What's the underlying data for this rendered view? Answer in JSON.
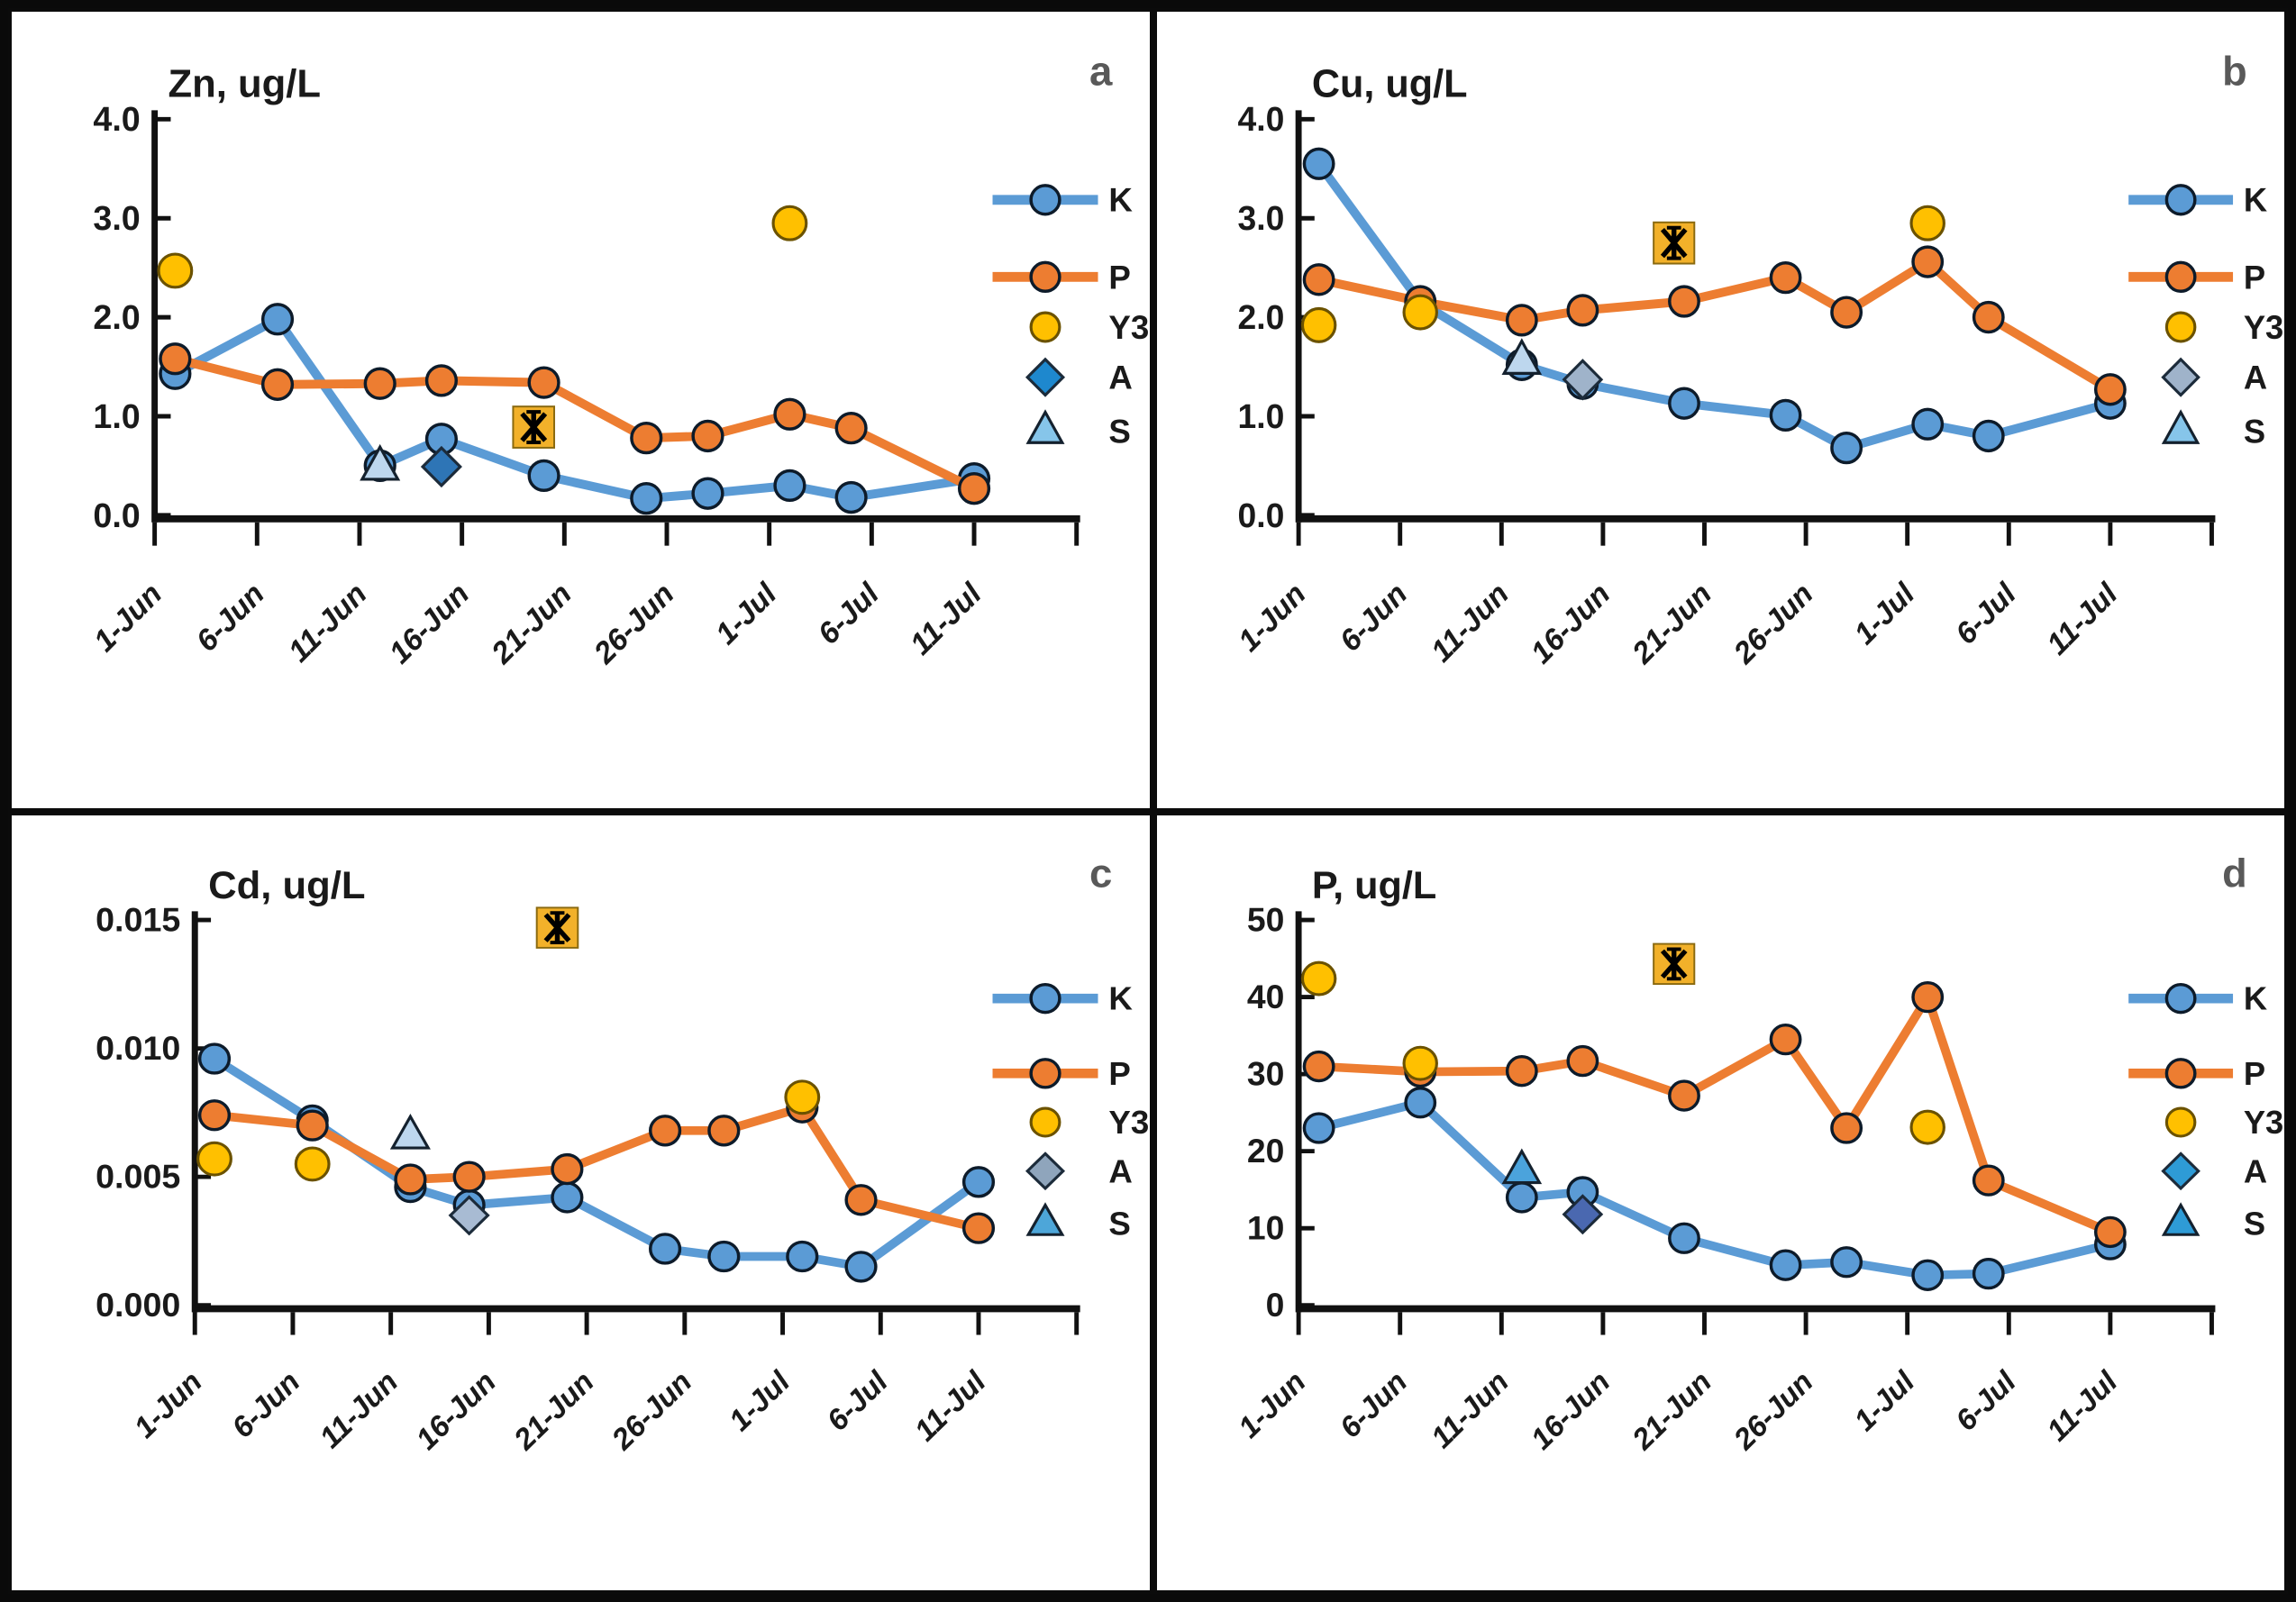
{
  "figure": {
    "background": "#ffffff",
    "border_color": "#0a0a0a"
  },
  "colors": {
    "k_series": "#5B9BD5",
    "p_series": "#ED7D31",
    "y3_fill": "#FFC000",
    "y3_stroke": "#6b5200",
    "marker_stroke": "#0d1b2a",
    "axis_color": "#111111",
    "text_color": "#1a1a1a",
    "panel_letter_color": "#595959",
    "star_box_fill": "#F2B12A",
    "star_box_stroke": "#8a6a10",
    "star_glyph": "#000000"
  },
  "x_axis": {
    "tick_labels": [
      "1-Jun",
      "6-Jun",
      "11-Jun",
      "16-Jun",
      "21-Jun",
      "26-Jun",
      "1-Jul",
      "6-Jul",
      "11-Jul"
    ],
    "tick_days": [
      0,
      5,
      10,
      15,
      20,
      25,
      30,
      35,
      40
    ],
    "axis_end_day": 45
  },
  "legend": {
    "items": [
      {
        "key": "K",
        "label": "K",
        "marker": "line-circle"
      },
      {
        "key": "P",
        "label": "P",
        "marker": "line-circle"
      },
      {
        "key": "Y3",
        "label": "Y3",
        "marker": "circle"
      },
      {
        "key": "A",
        "label": "A",
        "marker": "diamond"
      },
      {
        "key": "S",
        "label": "S",
        "marker": "triangle"
      }
    ]
  },
  "chart_data": [
    {
      "id": "a",
      "letter": "a",
      "title": "Zn, ug/L",
      "type": "line",
      "ylim": [
        0,
        4.0
      ],
      "ytick_values": [
        0,
        1,
        2,
        3,
        4
      ],
      "ytick_labels": [
        "0.0",
        "1.0",
        "2.0",
        "3.0",
        "4.0"
      ],
      "series": [
        {
          "name": "K",
          "marker": "circle",
          "line": true,
          "color": "#5B9BD5",
          "days": [
            1,
            6,
            11,
            14,
            19,
            24,
            27,
            31,
            34,
            40
          ],
          "values": [
            1.43,
            1.98,
            0.5,
            0.77,
            0.4,
            0.17,
            0.22,
            0.3,
            0.18,
            0.37
          ]
        },
        {
          "name": "P",
          "marker": "circle",
          "line": true,
          "color": "#ED7D31",
          "days": [
            1,
            6,
            11,
            14,
            19,
            24,
            27,
            31,
            34,
            40
          ],
          "values": [
            1.58,
            1.32,
            1.33,
            1.36,
            1.34,
            0.78,
            0.8,
            1.02,
            0.88,
            0.27
          ]
        },
        {
          "name": "Y3",
          "marker": "circle-large",
          "line": false,
          "color": "#FFC000",
          "days": [
            1,
            31
          ],
          "values": [
            2.47,
            2.95
          ]
        },
        {
          "name": "A",
          "marker": "diamond",
          "line": false,
          "color": "#2E75B6",
          "days": [
            14
          ],
          "values": [
            0.49
          ]
        },
        {
          "name": "S",
          "marker": "triangle",
          "line": false,
          "color": "#BDD7EE",
          "days": [
            11
          ],
          "values": [
            0.49
          ]
        },
        {
          "name": "star",
          "marker": "star-box",
          "line": false,
          "color": "#F2B12A",
          "days": [
            18.5
          ],
          "values": [
            0.89
          ]
        }
      ],
      "legend_marker_colors": {
        "A": "#1E88CE",
        "S": "#86C5EA"
      }
    },
    {
      "id": "b",
      "letter": "b",
      "title": "Cu, ug/L",
      "type": "line",
      "ylim": [
        0,
        4.0
      ],
      "ytick_values": [
        0,
        1,
        2,
        3,
        4
      ],
      "ytick_labels": [
        "0.0",
        "1.0",
        "2.0",
        "3.0",
        "4.0"
      ],
      "series": [
        {
          "name": "K",
          "marker": "circle",
          "line": true,
          "color": "#5B9BD5",
          "days": [
            1,
            6,
            11,
            14,
            19,
            24,
            27,
            31,
            34,
            40
          ],
          "values": [
            3.55,
            2.15,
            1.52,
            1.33,
            1.13,
            1.01,
            0.68,
            0.92,
            0.8,
            1.13
          ]
        },
        {
          "name": "P",
          "marker": "circle",
          "line": true,
          "color": "#ED7D31",
          "days": [
            1,
            6,
            11,
            14,
            19,
            24,
            27,
            31,
            34,
            40
          ],
          "values": [
            2.38,
            2.16,
            1.97,
            2.07,
            2.16,
            2.4,
            2.05,
            2.56,
            2.0,
            1.27
          ]
        },
        {
          "name": "Y3",
          "marker": "circle-large",
          "line": false,
          "color": "#FFC000",
          "days": [
            1,
            6,
            31
          ],
          "values": [
            1.92,
            2.05,
            2.95
          ]
        },
        {
          "name": "A",
          "marker": "diamond",
          "line": false,
          "color": "#9FB3CA",
          "days": [
            14
          ],
          "values": [
            1.37
          ]
        },
        {
          "name": "S",
          "marker": "triangle",
          "line": false,
          "color": "#BDD7EE",
          "days": [
            11
          ],
          "values": [
            1.56
          ]
        },
        {
          "name": "star",
          "marker": "star-box",
          "line": false,
          "color": "#F2B12A",
          "days": [
            18.5
          ],
          "values": [
            2.75
          ]
        }
      ],
      "legend_marker_colors": {
        "A": "#9FB3CA",
        "S": "#86C5EA"
      }
    },
    {
      "id": "c",
      "letter": "c",
      "title": "Cd, ug/L",
      "type": "line",
      "ylim": [
        0,
        0.015
      ],
      "ytick_values": [
        0,
        0.005,
        0.01,
        0.015
      ],
      "ytick_labels": [
        "0.000",
        "0.005",
        "0.010",
        "0.015"
      ],
      "series": [
        {
          "name": "K",
          "marker": "circle",
          "line": true,
          "color": "#5B9BD5",
          "days": [
            1,
            6,
            11,
            14,
            19,
            24,
            27,
            31,
            34,
            40
          ],
          "values": [
            0.0096,
            0.0072,
            0.0046,
            0.0039,
            0.0042,
            0.0022,
            0.0019,
            0.0019,
            0.0015,
            0.0048
          ]
        },
        {
          "name": "P",
          "marker": "circle",
          "line": true,
          "color": "#ED7D31",
          "days": [
            1,
            6,
            11,
            14,
            19,
            24,
            27,
            31,
            34,
            40
          ],
          "values": [
            0.0074,
            0.007,
            0.0049,
            0.005,
            0.0053,
            0.0068,
            0.0068,
            0.0077,
            0.0041,
            0.003
          ]
        },
        {
          "name": "Y3",
          "marker": "circle-large",
          "line": false,
          "color": "#FFC000",
          "days": [
            1,
            6,
            31
          ],
          "values": [
            0.0057,
            0.0055,
            0.0081
          ]
        },
        {
          "name": "A",
          "marker": "diamond",
          "line": false,
          "color": "#A8BBD3",
          "days": [
            14
          ],
          "values": [
            0.0035
          ]
        },
        {
          "name": "S",
          "marker": "triangle",
          "line": false,
          "color": "#BDD7EE",
          "days": [
            11
          ],
          "values": [
            0.0066
          ]
        },
        {
          "name": "star",
          "marker": "star-box",
          "line": false,
          "color": "#F2B12A",
          "days": [
            18.5
          ],
          "values": [
            0.0147
          ]
        }
      ],
      "legend_marker_colors": {
        "A": "#8FA5BC",
        "S": "#4DA6D9"
      }
    },
    {
      "id": "d",
      "letter": "d",
      "title": "P, ug/L",
      "type": "line",
      "ylim": [
        0,
        50
      ],
      "ytick_values": [
        0,
        10,
        20,
        30,
        40,
        50
      ],
      "ytick_labels": [
        "0",
        "10",
        "20",
        "30",
        "40",
        "50"
      ],
      "series": [
        {
          "name": "K",
          "marker": "circle",
          "line": true,
          "color": "#5B9BD5",
          "days": [
            1,
            6,
            11,
            14,
            19,
            24,
            27,
            31,
            34,
            40
          ],
          "values": [
            23.0,
            26.3,
            14.0,
            14.7,
            8.7,
            5.2,
            5.6,
            3.9,
            4.1,
            7.9
          ]
        },
        {
          "name": "P",
          "marker": "circle",
          "line": true,
          "color": "#ED7D31",
          "days": [
            1,
            6,
            11,
            14,
            19,
            24,
            27,
            31,
            34,
            40
          ],
          "values": [
            31.0,
            30.3,
            30.4,
            31.7,
            27.2,
            34.5,
            23.0,
            40.0,
            16.2,
            9.5
          ]
        },
        {
          "name": "Y3",
          "marker": "circle-large",
          "line": false,
          "color": "#FFC000",
          "days": [
            1,
            6,
            31
          ],
          "values": [
            42.4,
            31.4,
            23.1
          ]
        },
        {
          "name": "A",
          "marker": "diamond",
          "line": false,
          "color": "#4A68B0",
          "days": [
            14
          ],
          "values": [
            11.8
          ]
        },
        {
          "name": "S",
          "marker": "triangle",
          "line": false,
          "color": "#4BA3DC",
          "days": [
            11
          ],
          "values": [
            17.5
          ]
        },
        {
          "name": "star",
          "marker": "star-box",
          "line": false,
          "color": "#F2B12A",
          "days": [
            18.5
          ],
          "values": [
            44.3
          ]
        }
      ],
      "legend_marker_colors": {
        "A": "#2E9BD6",
        "S": "#2E9BD6"
      }
    }
  ]
}
